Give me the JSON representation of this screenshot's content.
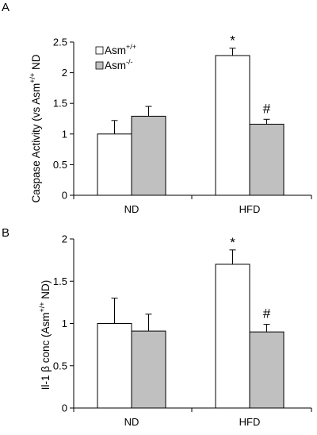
{
  "chart_data": [
    {
      "panel": "A",
      "type": "bar",
      "ylabel_parts": [
        "Caspase Activity (vs Asm",
        "+/+",
        " ND"
      ],
      "ylim": [
        0,
        2.5
      ],
      "yticks": [
        "0",
        "0.5",
        "1",
        "1.5",
        "2",
        "2.5"
      ],
      "ytick_values": [
        0,
        0.5,
        1,
        1.5,
        2,
        2.5
      ],
      "categories": [
        "ND",
        "HFD"
      ],
      "series": [
        {
          "name_base": "Asm",
          "name_sup": "+/+",
          "color": "#ffffff",
          "values": [
            1.0,
            2.28
          ],
          "errors": [
            0.22,
            0.12
          ]
        },
        {
          "name_base": "Asm",
          "name_sup": "-/-",
          "color": "#c0c0c0",
          "values": [
            1.29,
            1.16
          ],
          "errors": [
            0.16,
            0.08
          ]
        }
      ],
      "annotations": [
        {
          "text": "*",
          "category": 1,
          "series": 0
        },
        {
          "text": "#",
          "category": 1,
          "series": 1
        }
      ],
      "legend": "top-left"
    },
    {
      "panel": "B",
      "type": "bar",
      "ylabel_parts": [
        "Il-1 β conc  (Asm",
        "+/+",
        " ND)"
      ],
      "ylim": [
        0,
        2
      ],
      "yticks": [
        "0",
        "0.5",
        "1",
        "1.5",
        "2"
      ],
      "ytick_values": [
        0,
        0.5,
        1,
        1.5,
        2
      ],
      "categories": [
        "ND",
        "HFD"
      ],
      "series": [
        {
          "color": "#ffffff",
          "values": [
            1.0,
            1.7
          ],
          "errors": [
            0.3,
            0.17
          ]
        },
        {
          "color": "#c0c0c0",
          "values": [
            0.91,
            0.9
          ],
          "errors": [
            0.2,
            0.09
          ]
        }
      ],
      "annotations": [
        {
          "text": "*",
          "category": 1,
          "series": 0
        },
        {
          "text": "#",
          "category": 1,
          "series": 1
        }
      ]
    }
  ]
}
